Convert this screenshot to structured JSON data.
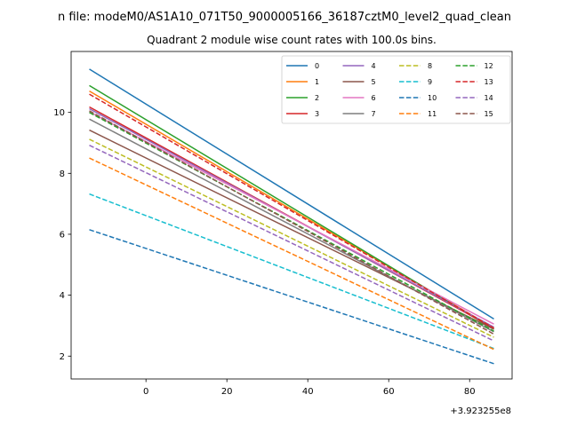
{
  "chart_data": {
    "type": "line",
    "suptitle": "n file: modeM0/AS1A10_071T50_9000005166_36187cztM0_level2_quad_clean",
    "title": "Quadrant 2 module wise count rates with 100.0s bins.",
    "xlabel": "",
    "ylabel": "",
    "x_offset_label": "+3.923255e8",
    "xlim": [
      -18.5,
      90.5
    ],
    "ylim": [
      1.25,
      12.0
    ],
    "x_ticks": [
      0,
      20,
      40,
      60,
      80
    ],
    "x_tick_labels": [
      "0",
      "20",
      "40",
      "60",
      "80"
    ],
    "y_ticks": [
      2,
      4,
      6,
      8,
      10
    ],
    "y_tick_labels": [
      "2",
      "4",
      "6",
      "8",
      "10"
    ],
    "x": [
      -14,
      86
    ],
    "legend": {
      "placement": "top-right",
      "columns": 4
    },
    "series": [
      {
        "name": "0",
        "values": [
          11.42,
          3.22
        ],
        "color": "#1f77b4",
        "style": "solid"
      },
      {
        "name": "1",
        "values": [
          10.7,
          2.92
        ],
        "color": "#ff7f0e",
        "style": "solid"
      },
      {
        "name": "2",
        "values": [
          10.88,
          2.88
        ],
        "color": "#2ca02c",
        "style": "solid"
      },
      {
        "name": "3",
        "values": [
          10.18,
          2.92
        ],
        "color": "#d62728",
        "style": "solid"
      },
      {
        "name": "4",
        "values": [
          10.12,
          2.95
        ],
        "color": "#9467bd",
        "style": "solid"
      },
      {
        "name": "5",
        "values": [
          9.42,
          2.88
        ],
        "color": "#8c564b",
        "style": "solid"
      },
      {
        "name": "6",
        "values": [
          10.02,
          3.05
        ],
        "color": "#e377c2",
        "style": "solid"
      },
      {
        "name": "7",
        "values": [
          9.78,
          2.8
        ],
        "color": "#7f7f7f",
        "style": "solid"
      },
      {
        "name": "8",
        "values": [
          9.12,
          2.62
        ],
        "color": "#bcbd22",
        "style": "dashed"
      },
      {
        "name": "9",
        "values": [
          7.32,
          2.25
        ],
        "color": "#17becf",
        "style": "dashed"
      },
      {
        "name": "10",
        "values": [
          6.15,
          1.75
        ],
        "color": "#1f77b4",
        "style": "dashed"
      },
      {
        "name": "11",
        "values": [
          8.5,
          2.22
        ],
        "color": "#ff7f0e",
        "style": "dashed"
      },
      {
        "name": "12",
        "values": [
          10.0,
          2.82
        ],
        "color": "#2ca02c",
        "style": "dashed"
      },
      {
        "name": "13",
        "values": [
          10.6,
          2.92
        ],
        "color": "#d62728",
        "style": "dashed"
      },
      {
        "name": "14",
        "values": [
          8.92,
          2.5
        ],
        "color": "#9467bd",
        "style": "dashed"
      },
      {
        "name": "15",
        "values": [
          10.05,
          2.72
        ],
        "color": "#8c564b",
        "style": "dashed"
      }
    ]
  }
}
